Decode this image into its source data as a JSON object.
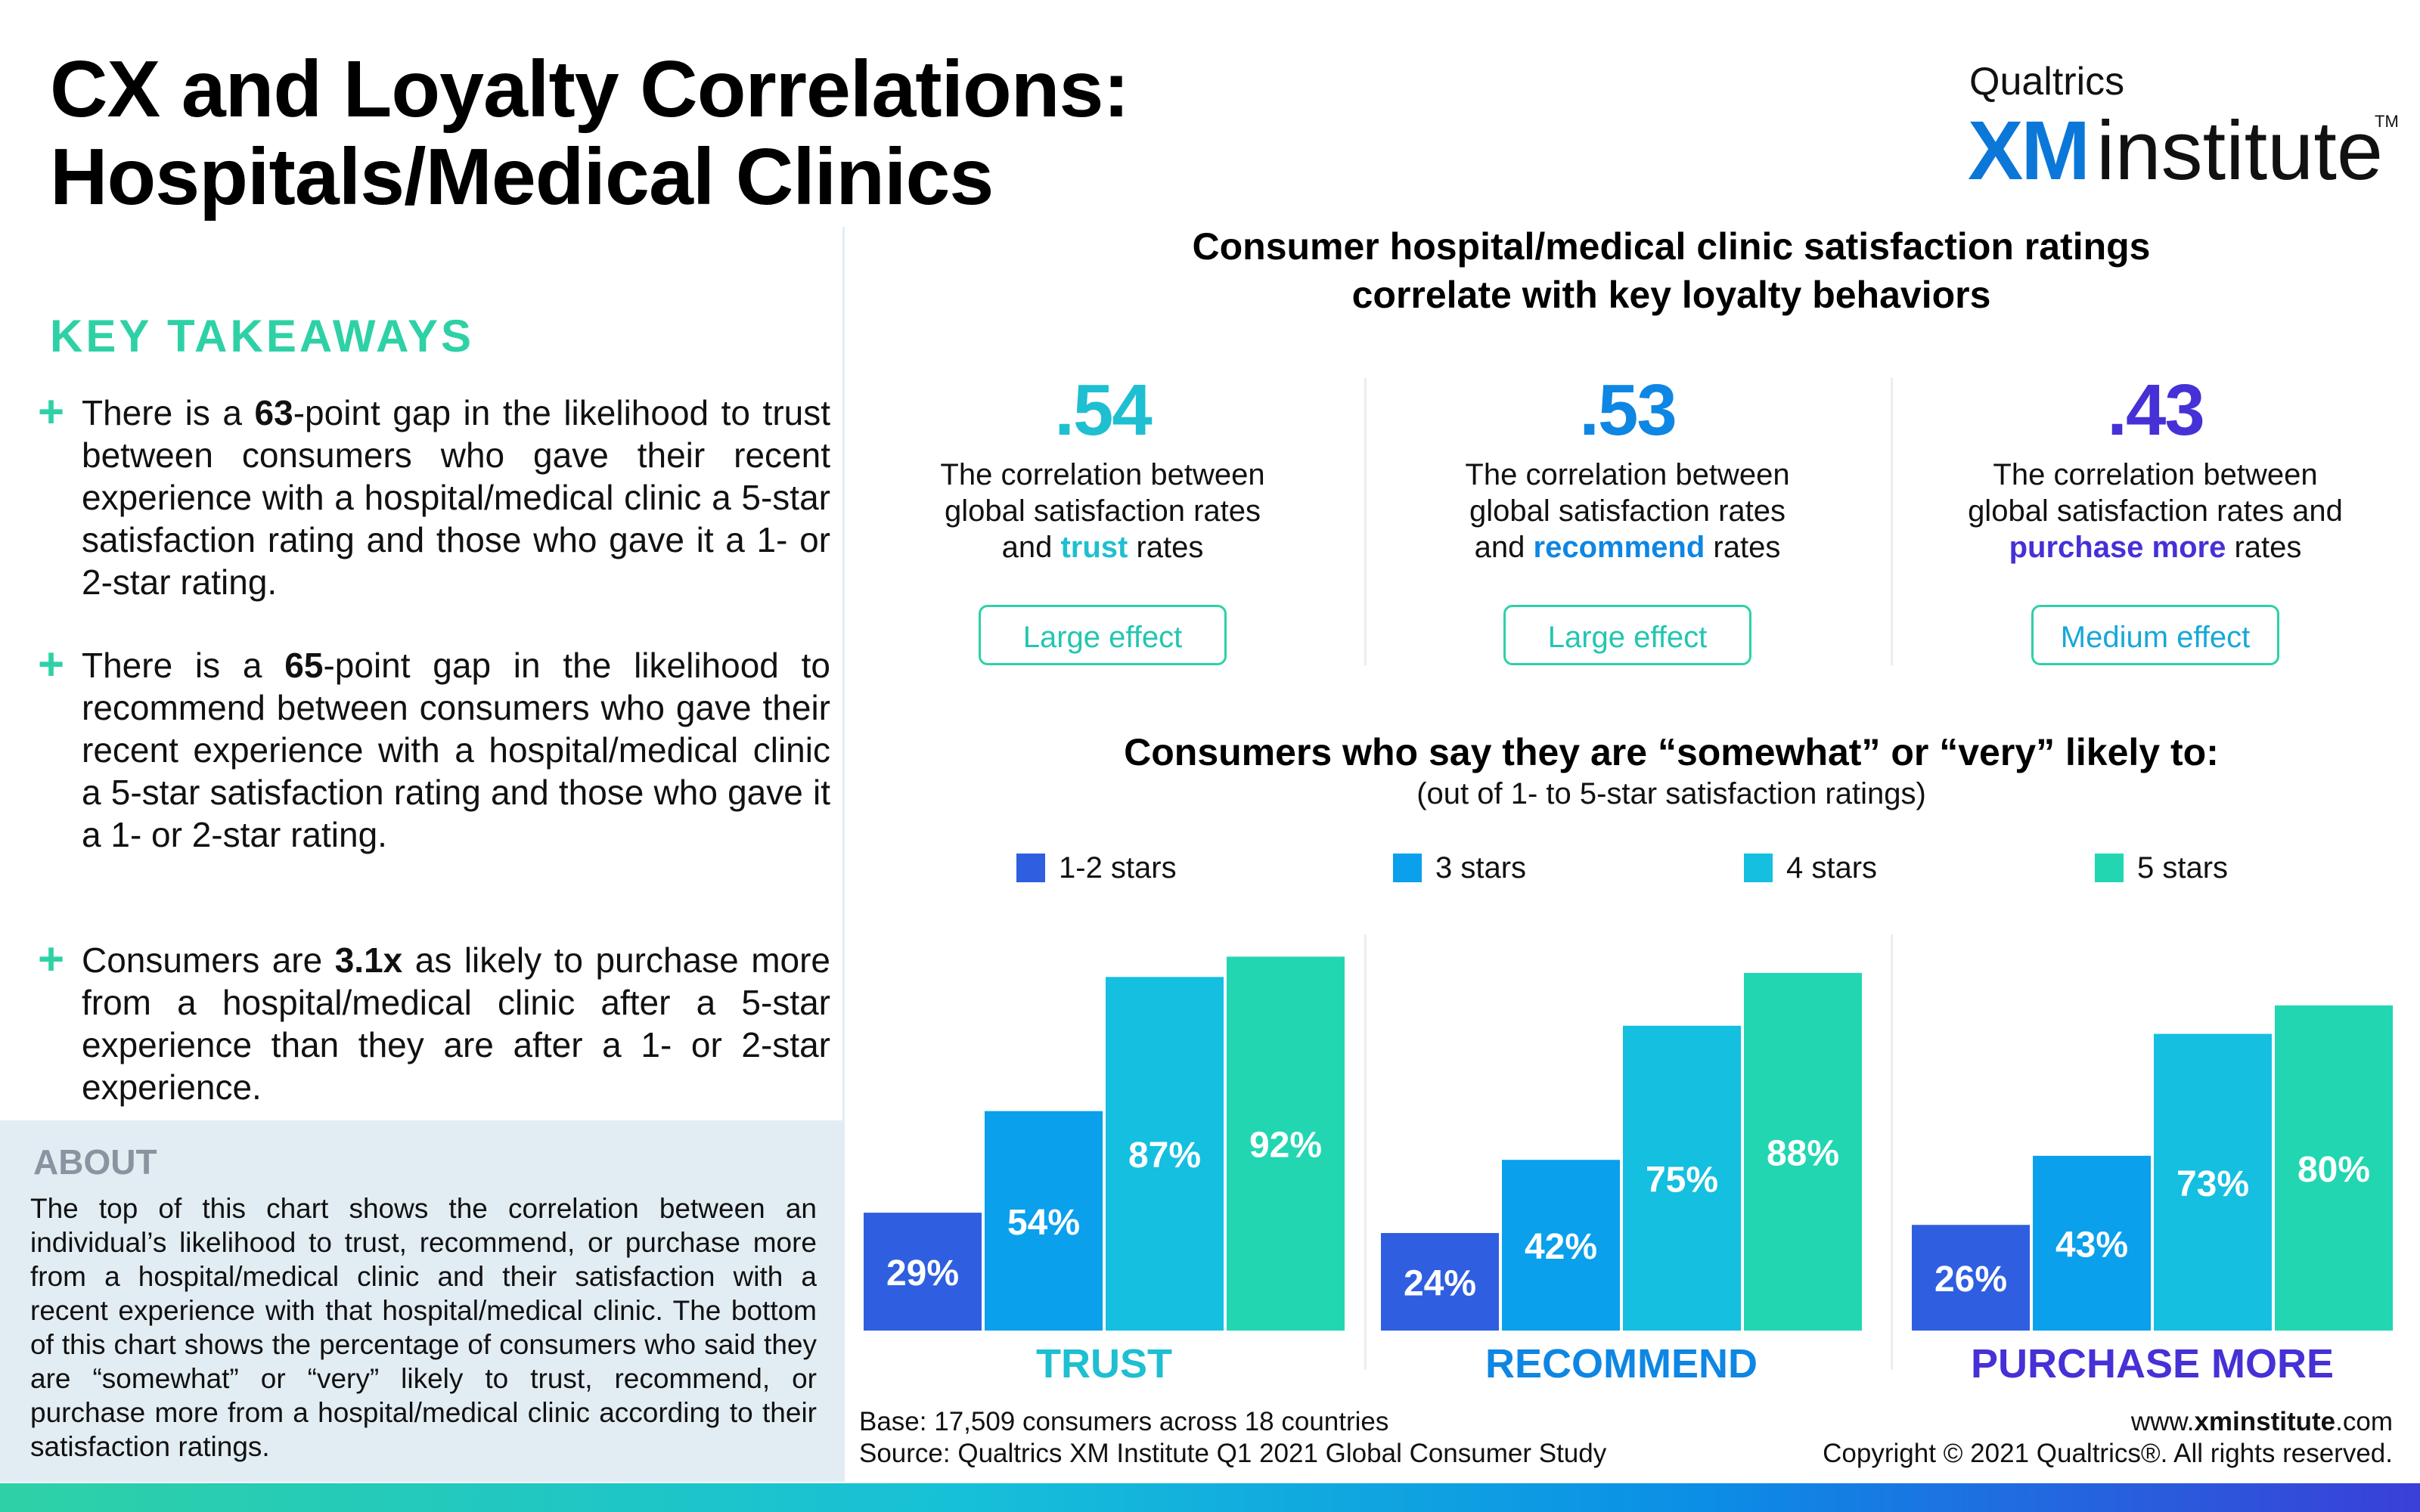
{
  "title_line1": "CX and Loyalty Correlations:",
  "title_line2": "Hospitals/Medical Clinics",
  "logo": {
    "top": "Qualtrics",
    "xm": "XM",
    "institute": "institute",
    "tm": "TM"
  },
  "key_takeaways": {
    "heading": "KEY TAKEAWAYS",
    "items": [
      {
        "pre": "There is a ",
        "bold": "63",
        "post": "-point gap in the likelihood to trust between consumers who gave their recent experience with a hospital/medical clinic a 5-star satisfaction rating and those who gave it a 1- or 2-star rating."
      },
      {
        "pre": "There is a ",
        "bold": "65",
        "post": "-point gap in the likelihood to recommend between consumers who gave their recent experience with a hospital/medical clinic a 5-star satisfaction rating and those who gave it a 1- or 2-star rating."
      },
      {
        "pre": "Consumers are ",
        "bold": "3.1x",
        "post": " as likely to purchase more from a hospital/medical clinic after a 5-star experience than they are after a 1- or 2-star experience."
      }
    ]
  },
  "about": {
    "heading": "ABOUT",
    "text": "The top of this chart shows the correlation between an individual’s likelihood to trust, recommend, or purchase more from a hospital/medical clinic and their satisfaction with a recent experience with that hospital/medical clinic. The bottom of this chart shows the percentage of consumers who said they are “somewhat” or “very” likely to trust, recommend, or purchase more from a hospital/medical clinic according to their satisfaction ratings."
  },
  "headline_line1": "Consumer hospital/medical clinic satisfaction ratings",
  "headline_line2": "correlate with key loyalty behaviors",
  "correlations": [
    {
      "value": ".54",
      "color": "#1ebfd0",
      "line1": "The correlation between",
      "line2": "global satisfaction rates",
      "line3_pre": "and ",
      "keyword": "trust",
      "line3_post": " rates",
      "badge": "Large effect",
      "badge_color": "#22c6b0"
    },
    {
      "value": ".53",
      "color": "#0e86e3",
      "line1": "The correlation between",
      "line2": "global satisfaction rates",
      "line3_pre": "and ",
      "keyword": "recommend",
      "line3_post": " rates",
      "badge": "Large effect",
      "badge_color": "#22c6b0"
    },
    {
      "value": ".43",
      "color": "#4531d6",
      "line1": "The correlation between",
      "line2": "global satisfaction rates and",
      "line3_pre": "",
      "keyword": "purchase more",
      "line3_post": " rates",
      "badge": "Medium effect",
      "badge_color": "#16a8d8"
    }
  ],
  "chart_title": "Consumers who say they are “somewhat” or “very” likely to:",
  "chart_subtitle": "(out of 1- to 5-star satisfaction ratings)",
  "chart_data": {
    "type": "bar",
    "categories": [
      "TRUST",
      "RECOMMEND",
      "PURCHASE MORE"
    ],
    "category_colors": [
      "#1ebfd0",
      "#0e86e3",
      "#4531d6"
    ],
    "series": [
      {
        "name": "1-2 stars",
        "color": "#2f5fe0",
        "values": [
          29,
          24,
          26
        ]
      },
      {
        "name": "3 stars",
        "color": "#0aa0ec",
        "values": [
          54,
          42,
          43
        ]
      },
      {
        "name": "4 stars",
        "color": "#14bfe0",
        "values": [
          87,
          75,
          73
        ]
      },
      {
        "name": "5 stars",
        "color": "#22d6b2",
        "values": [
          92,
          88,
          80
        ]
      }
    ],
    "value_suffix": "%",
    "ylim": [
      0,
      100
    ],
    "legend": "top"
  },
  "footer": {
    "base": "Base: 17,509 consumers across 18 countries",
    "source": "Source: Qualtrics XM Institute Q1 2021 Global Consumer Study",
    "url_pre": "www.",
    "url_bold": "xminstitute",
    "url_post": ".com",
    "copyright": "Copyright © 2021 Qualtrics®. All rights reserved."
  }
}
